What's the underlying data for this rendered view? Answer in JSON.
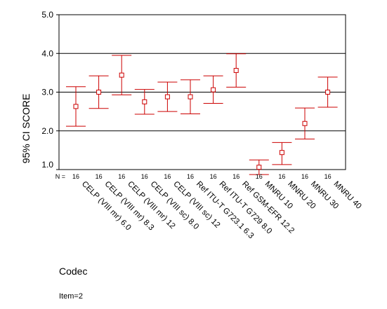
{
  "chart_data": {
    "type": "errorbar",
    "title": "",
    "ylabel": "95% CI SCORE",
    "xlabel": "Codec",
    "ylim": [
      1.0,
      5.0
    ],
    "yticks": [
      "1.0",
      "2.0",
      "3.0",
      "4.0",
      "5.0"
    ],
    "gridlines_y": [
      2.0,
      3.0,
      4.0
    ],
    "n_label": "N =",
    "marker_color": "#cc0000",
    "categories": [
      "CELP (VIII mr) 6.0",
      "CELP (VIII mr) 8.3",
      "CELP (VIII mr) 12",
      "CELP (VIII sc) 8.0",
      "CELP (VIII sc) 12",
      "Ref ITU-T G723.1 6.3",
      "Ref ITU-T G729 8.0",
      "Ref GSM-EFR 12.2",
      "MNRU 10",
      "MNRU 20",
      "MNRU 30",
      "MNRU 40"
    ],
    "n": [
      "16",
      "16",
      "16",
      "16",
      "16",
      "16",
      "16",
      "16",
      "16",
      "16",
      "16",
      "16"
    ],
    "mean": [
      2.63,
      3.0,
      3.44,
      2.75,
      2.88,
      2.88,
      3.06,
      3.56,
      1.06,
      1.44,
      2.19,
      3.0
    ],
    "lower": [
      2.12,
      2.58,
      2.93,
      2.43,
      2.5,
      2.44,
      2.71,
      3.13,
      0.87,
      1.13,
      1.79,
      2.61
    ],
    "upper": [
      3.14,
      3.42,
      3.95,
      3.07,
      3.26,
      3.32,
      3.42,
      3.99,
      1.25,
      1.7,
      2.59,
      3.39
    ]
  },
  "footer": {
    "note": "Item=2"
  }
}
